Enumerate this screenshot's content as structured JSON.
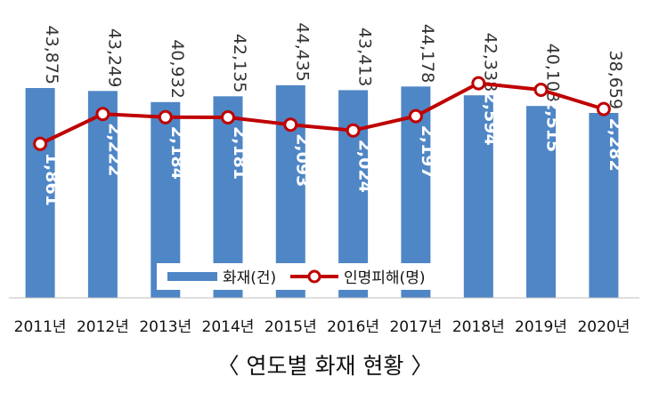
{
  "chart_data": {
    "type": "bar",
    "categories": [
      "2011년",
      "2012년",
      "2013년",
      "2014년",
      "2015년",
      "2016년",
      "2017년",
      "2018년",
      "2019년",
      "2020년"
    ],
    "series": [
      {
        "name": "화재(건)",
        "type": "bar",
        "axis": "left",
        "values": [
          43875,
          43249,
          40932,
          42135,
          44435,
          43413,
          44178,
          42338,
          40103,
          38659
        ],
        "labels": [
          "43,875",
          "43,249",
          "40,932",
          "42,135",
          "44,435",
          "43,413",
          "44,178",
          "42,338",
          "40,103",
          "38,659"
        ],
        "color": "#4f86c6"
      },
      {
        "name": "인명피해(명)",
        "type": "line",
        "axis": "right",
        "values": [
          1861,
          2222,
          2184,
          2181,
          2093,
          2024,
          2197,
          2594,
          2515,
          2282
        ],
        "labels": [
          "1,861",
          "2,222",
          "2,184",
          "2,181",
          "2,093",
          "2,024",
          "2,197",
          "2,594",
          "2,515",
          "2,282"
        ],
        "color": "#c00000"
      }
    ],
    "ylim_left": [
      0,
      50000
    ],
    "ylim_right": [
      0,
      3600
    ],
    "legend": "bottom-center",
    "grid": false,
    "caption": "〈 연도별 화재 현황 〉"
  }
}
